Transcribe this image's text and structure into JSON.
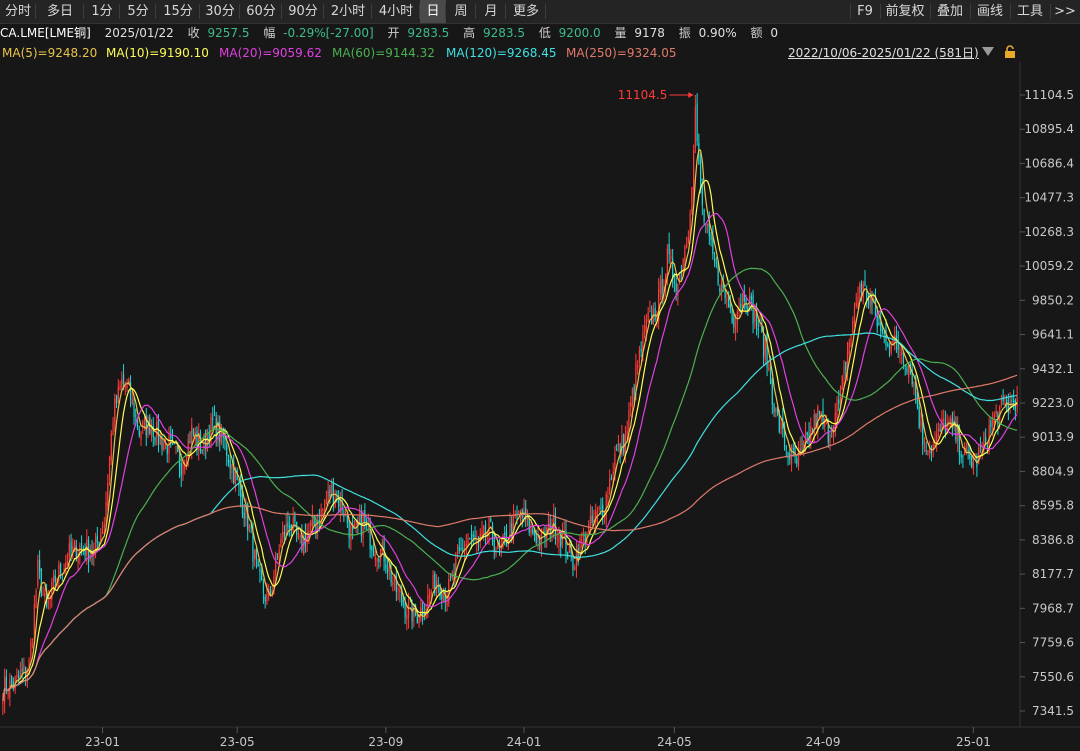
{
  "toolbar": {
    "items": [
      "分时",
      "多日",
      "1分",
      "5分",
      "15分",
      "30分",
      "60分",
      "90分",
      "2小时",
      "4小时",
      "日",
      "周",
      "月",
      "更多"
    ],
    "active": "日",
    "right_items": [
      "F9",
      "前复权",
      "叠加",
      "画线",
      "工具",
      ">>"
    ]
  },
  "quote": {
    "symbol": "CA.LME[LME铜]",
    "date": "2025/01/22",
    "close_label": "收",
    "close": "9257.5",
    "change_label": "幅",
    "change": "-0.29%[-27.00]",
    "open_label": "开",
    "open": "9283.5",
    "high_label": "高",
    "high": "9283.5",
    "low_label": "低",
    "low": "9200.0",
    "volume_label": "量",
    "volume": "9178",
    "amplitude_label": "振",
    "amplitude": "0.90%",
    "amount_label": "额",
    "amount": "0"
  },
  "ma_labels": [
    {
      "text": "MA(5)=9248.20",
      "color": "#e8c34a"
    },
    {
      "text": "MA(10)=9190.10",
      "color": "#ffff55"
    },
    {
      "text": "MA(20)=9059.62",
      "color": "#e040e0"
    },
    {
      "text": "MA(60)=9144.32",
      "color": "#4caf50"
    },
    {
      "text": "MA(120)=9268.45",
      "color": "#40e0e0"
    },
    {
      "text": "MA(250)=9324.05",
      "color": "#e07a6a"
    }
  ],
  "range_text": "2022/10/06-2025/01/22 (581日)",
  "colors": {
    "up": "#ff3b3b",
    "down": "#1fd5d5",
    "background": "#171717",
    "grid": "#2a2a2a",
    "ma5": "#e8c34a",
    "ma10": "#ffff55",
    "ma20": "#e040e0",
    "ma60": "#4caf50",
    "ma120": "#40e0e0",
    "ma250": "#e07a6a"
  },
  "chart_data": {
    "type": "candlestick",
    "y_ticks": [
      "11104.5",
      "10895.4",
      "10686.4",
      "10477.3",
      "10268.3",
      "10059.2",
      "9850.2",
      "9641.1",
      "9432.1",
      "9223.0",
      "9013.9",
      "8804.9",
      "8595.8",
      "8386.8",
      "8177.7",
      "7968.7",
      "7759.6",
      "7550.6",
      "7341.5"
    ],
    "ylim": [
      7341.5,
      11104.5
    ],
    "x_ticks": [
      {
        "label": "23-01",
        "index": 57
      },
      {
        "label": "23-05",
        "index": 134
      },
      {
        "label": "23-09",
        "index": 219
      },
      {
        "label": "24-01",
        "index": 298
      },
      {
        "label": "24-05",
        "index": 384
      },
      {
        "label": "24-09",
        "index": 469
      },
      {
        "label": "25-01",
        "index": 555
      }
    ],
    "total_bars": 581,
    "max_annotation": {
      "label": "11104.5",
      "value": 11104.5,
      "index": 396
    },
    "close_path": [
      [
        0,
        7480
      ],
      [
        8,
        7520
      ],
      [
        15,
        7620
      ],
      [
        20,
        8200
      ],
      [
        25,
        7950
      ],
      [
        30,
        8150
      ],
      [
        38,
        8300
      ],
      [
        45,
        8350
      ],
      [
        52,
        8300
      ],
      [
        58,
        8500
      ],
      [
        63,
        9150
      ],
      [
        68,
        9350
      ],
      [
        72,
        9300
      ],
      [
        78,
        9050
      ],
      [
        84,
        9100
      ],
      [
        90,
        9000
      ],
      [
        96,
        8950
      ],
      [
        102,
        8850
      ],
      [
        108,
        9050
      ],
      [
        114,
        8950
      ],
      [
        120,
        9100
      ],
      [
        126,
        9000
      ],
      [
        132,
        8800
      ],
      [
        140,
        8500
      ],
      [
        146,
        8150
      ],
      [
        152,
        8000
      ],
      [
        158,
        8350
      ],
      [
        164,
        8500
      ],
      [
        170,
        8350
      ],
      [
        176,
        8450
      ],
      [
        182,
        8550
      ],
      [
        188,
        8700
      ],
      [
        194,
        8600
      ],
      [
        200,
        8400
      ],
      [
        206,
        8500
      ],
      [
        212,
        8350
      ],
      [
        218,
        8300
      ],
      [
        224,
        8100
      ],
      [
        230,
        7980
      ],
      [
        236,
        7920
      ],
      [
        242,
        8000
      ],
      [
        248,
        8150
      ],
      [
        254,
        8050
      ],
      [
        260,
        8250
      ],
      [
        266,
        8400
      ],
      [
        272,
        8350
      ],
      [
        278,
        8450
      ],
      [
        284,
        8300
      ],
      [
        290,
        8450
      ],
      [
        296,
        8550
      ],
      [
        302,
        8450
      ],
      [
        308,
        8380
      ],
      [
        314,
        8500
      ],
      [
        320,
        8400
      ],
      [
        326,
        8250
      ],
      [
        332,
        8400
      ],
      [
        338,
        8500
      ],
      [
        344,
        8600
      ],
      [
        350,
        8900
      ],
      [
        356,
        9000
      ],
      [
        362,
        9400
      ],
      [
        368,
        9700
      ],
      [
        374,
        9800
      ],
      [
        380,
        10100
      ],
      [
        386,
        9950
      ],
      [
        392,
        10300
      ],
      [
        396,
        10900
      ],
      [
        400,
        10400
      ],
      [
        406,
        10100
      ],
      [
        412,
        9900
      ],
      [
        418,
        9750
      ],
      [
        424,
        9900
      ],
      [
        430,
        9750
      ],
      [
        436,
        9550
      ],
      [
        442,
        9150
      ],
      [
        448,
        8950
      ],
      [
        454,
        8850
      ],
      [
        460,
        9000
      ],
      [
        466,
        9150
      ],
      [
        472,
        9050
      ],
      [
        478,
        9200
      ],
      [
        484,
        9600
      ],
      [
        490,
        9950
      ],
      [
        496,
        9850
      ],
      [
        502,
        9650
      ],
      [
        508,
        9600
      ],
      [
        514,
        9550
      ],
      [
        520,
        9400
      ],
      [
        526,
        9000
      ],
      [
        532,
        8950
      ],
      [
        538,
        9100
      ],
      [
        544,
        9050
      ],
      [
        550,
        8900
      ],
      [
        556,
        8850
      ],
      [
        562,
        9000
      ],
      [
        568,
        9150
      ],
      [
        574,
        9200
      ],
      [
        580,
        9257.5
      ]
    ]
  }
}
